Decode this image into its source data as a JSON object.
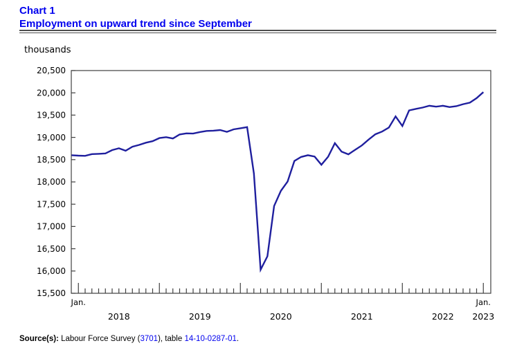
{
  "header": {
    "chart_label": "Chart 1",
    "title": "Employment on upward trend since September"
  },
  "y_axis": {
    "unit_label": "thousands",
    "tick_labels": [
      "15,500",
      "16,000",
      "16,500",
      "17,000",
      "17,500",
      "18,000",
      "18,500",
      "19,000",
      "19,500",
      "20,000",
      "20,500"
    ]
  },
  "x_axis": {
    "first_month_label": "Jan.",
    "last_month_label": "Jan.",
    "year_labels": [
      "2018",
      "2019",
      "2020",
      "2021",
      "2022",
      "2023"
    ]
  },
  "source": {
    "label": "Source(s):",
    "segment_before_survey_link": " Labour Force Survey (",
    "survey_link": "3701",
    "segment_between_links": "), table ",
    "table_link": "14-10-0287-01",
    "segment_after_links": "."
  },
  "colors": {
    "line": "#1f1f9e",
    "title_text": "#0000ee",
    "link_text": "#0000ee",
    "axis": "#404040"
  },
  "chart_data": {
    "type": "line",
    "title": "Employment on upward trend since September",
    "ylabel": "thousands",
    "unit": "thousands of persons",
    "ylim": [
      15500,
      20500
    ],
    "y_tick_step": 500,
    "grid": false,
    "legend": "none",
    "x_tick_style": "monthly ticks inside bottom axis, tall tick each January",
    "categories": [
      "2017-12",
      "2018-01",
      "2018-02",
      "2018-03",
      "2018-04",
      "2018-05",
      "2018-06",
      "2018-07",
      "2018-08",
      "2018-09",
      "2018-10",
      "2018-11",
      "2018-12",
      "2019-01",
      "2019-02",
      "2019-03",
      "2019-04",
      "2019-05",
      "2019-06",
      "2019-07",
      "2019-08",
      "2019-09",
      "2019-10",
      "2019-11",
      "2019-12",
      "2020-01",
      "2020-02",
      "2020-03",
      "2020-04",
      "2020-05",
      "2020-06",
      "2020-07",
      "2020-08",
      "2020-09",
      "2020-10",
      "2020-11",
      "2020-12",
      "2021-01",
      "2021-02",
      "2021-03",
      "2021-04",
      "2021-05",
      "2021-06",
      "2021-07",
      "2021-08",
      "2021-09",
      "2021-10",
      "2021-11",
      "2021-12",
      "2022-01",
      "2022-02",
      "2022-03",
      "2022-04",
      "2022-05",
      "2022-06",
      "2022-07",
      "2022-08",
      "2022-09",
      "2022-10",
      "2022-11",
      "2022-12",
      "2023-01"
    ],
    "series": [
      {
        "name": "Employment",
        "values": [
          18600,
          18590,
          18585,
          18625,
          18630,
          18640,
          18715,
          18755,
          18700,
          18790,
          18830,
          18880,
          18915,
          18985,
          19005,
          18975,
          19065,
          19090,
          19085,
          19120,
          19145,
          19150,
          19165,
          19125,
          19180,
          19205,
          19230,
          18190,
          16030,
          16330,
          17460,
          17800,
          18010,
          18470,
          18560,
          18600,
          18570,
          18385,
          18565,
          18870,
          18680,
          18620,
          18720,
          18820,
          18950,
          19070,
          19130,
          19220,
          19470,
          19255,
          19605,
          19640,
          19670,
          19710,
          19690,
          19710,
          19680,
          19700,
          19745,
          19780,
          19880,
          20015
        ]
      }
    ]
  }
}
